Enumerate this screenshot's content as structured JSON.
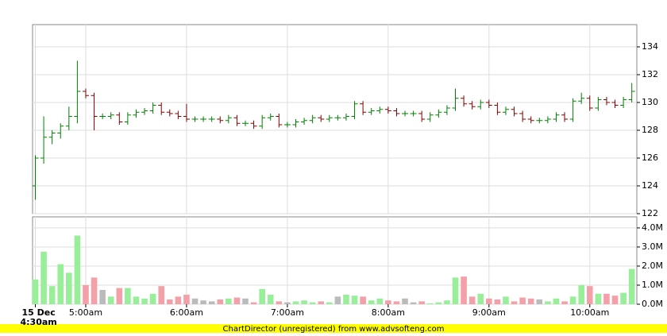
{
  "chart_data": [
    {
      "type": "ohlc",
      "ylim": [
        122,
        135.6
      ],
      "yticks": [
        122,
        124,
        126,
        128,
        130,
        132,
        134
      ],
      "grid": true,
      "up_color": "#008000",
      "down_color": "#800000",
      "open": [
        124.0,
        126.0,
        127.5,
        127.8,
        128.3,
        129.0,
        130.8,
        130.5,
        129.0,
        129.0,
        129.1,
        128.6,
        129.1,
        129.3,
        129.4,
        129.8,
        129.3,
        129.2,
        129.0,
        128.8,
        128.8,
        128.8,
        128.8,
        128.7,
        128.9,
        128.5,
        128.5,
        128.3,
        128.9,
        129.0,
        128.4,
        128.4,
        128.6,
        128.7,
        128.9,
        128.8,
        128.9,
        128.9,
        129.0,
        129.9,
        129.3,
        129.4,
        129.5,
        129.4,
        129.2,
        129.2,
        129.2,
        128.8,
        129.1,
        129.3,
        129.6,
        130.3,
        129.9,
        129.7,
        130.0,
        129.8,
        129.3,
        129.5,
        129.2,
        128.8,
        128.7,
        128.7,
        128.8,
        129.1,
        128.8,
        130.1,
        130.3,
        129.6,
        130.2,
        130.0,
        129.8,
        130.2
      ],
      "high": [
        126.2,
        129.0,
        128.0,
        128.5,
        129.7,
        133.0,
        131.0,
        130.7,
        129.2,
        129.3,
        129.3,
        129.3,
        129.5,
        129.6,
        130.0,
        130.0,
        129.5,
        129.4,
        129.9,
        129.0,
        129.0,
        129.0,
        129.0,
        129.1,
        129.1,
        128.7,
        128.7,
        129.1,
        129.2,
        129.2,
        128.6,
        128.8,
        128.9,
        129.1,
        129.1,
        129.1,
        129.1,
        129.2,
        130.1,
        130.1,
        129.6,
        129.7,
        129.7,
        129.6,
        129.4,
        129.4,
        129.4,
        129.3,
        129.5,
        129.8,
        131.0,
        130.5,
        130.1,
        130.2,
        130.2,
        130.0,
        129.7,
        129.7,
        129.4,
        129.0,
        128.9,
        129.0,
        129.3,
        129.3,
        130.3,
        130.7,
        130.5,
        130.4,
        130.4,
        130.2,
        130.4,
        131.4
      ],
      "low": [
        123.0,
        125.6,
        127.0,
        127.4,
        128.0,
        128.5,
        130.3,
        128.0,
        128.8,
        128.8,
        128.4,
        128.4,
        128.9,
        129.1,
        129.2,
        129.1,
        129.0,
        128.8,
        128.6,
        128.6,
        128.6,
        128.6,
        128.5,
        128.5,
        128.3,
        128.3,
        128.1,
        128.1,
        128.7,
        128.2,
        128.2,
        128.2,
        128.4,
        128.5,
        128.6,
        128.6,
        128.7,
        128.7,
        128.8,
        129.1,
        129.1,
        129.2,
        129.2,
        129.0,
        129.0,
        129.0,
        128.6,
        128.6,
        128.9,
        129.1,
        129.4,
        129.7,
        129.5,
        129.5,
        129.6,
        129.1,
        129.1,
        129.0,
        128.6,
        128.5,
        128.5,
        128.5,
        128.6,
        128.6,
        128.6,
        129.9,
        129.4,
        129.4,
        129.8,
        129.6,
        129.6,
        130.0
      ],
      "close": [
        126.0,
        127.5,
        127.8,
        128.3,
        129.0,
        130.8,
        130.5,
        129.0,
        129.0,
        129.1,
        128.6,
        129.1,
        129.3,
        129.4,
        129.8,
        129.3,
        129.2,
        129.0,
        128.8,
        128.8,
        128.8,
        128.8,
        128.7,
        128.9,
        128.5,
        128.5,
        128.3,
        128.9,
        129.0,
        128.4,
        128.4,
        128.6,
        128.7,
        128.9,
        128.8,
        128.9,
        128.9,
        129.0,
        129.9,
        129.3,
        129.4,
        129.5,
        129.4,
        129.2,
        129.2,
        129.2,
        128.8,
        129.1,
        129.3,
        129.6,
        130.3,
        129.9,
        129.7,
        130.0,
        129.8,
        129.3,
        129.5,
        129.2,
        128.8,
        128.7,
        128.7,
        128.8,
        129.1,
        128.8,
        130.1,
        130.3,
        129.6,
        130.2,
        130.0,
        129.8,
        130.2,
        130.8
      ]
    },
    {
      "type": "bar",
      "ylim": [
        0,
        4580000
      ],
      "yticks": [
        {
          "value": 0,
          "label": "0.0M"
        },
        {
          "value": 1000000,
          "label": "1.0M"
        },
        {
          "value": 2000000,
          "label": "2.0M"
        },
        {
          "value": 3000000,
          "label": "3.0M"
        },
        {
          "value": 4000000,
          "label": "4.0M"
        }
      ],
      "grid": true,
      "up_color": "#99ee99",
      "down_color": "#f4a0a8",
      "flat_color": "#bbbbbb",
      "date_label": "15 Dec",
      "categories": [
        "4:30am",
        null,
        null,
        null,
        null,
        null,
        "5:00am",
        null,
        null,
        null,
        null,
        null,
        null,
        null,
        null,
        null,
        null,
        null,
        "6:00am",
        null,
        null,
        null,
        null,
        null,
        null,
        null,
        null,
        null,
        null,
        null,
        "7:00am",
        null,
        null,
        null,
        null,
        null,
        null,
        null,
        null,
        null,
        null,
        null,
        "8:00am",
        null,
        null,
        null,
        null,
        null,
        null,
        null,
        null,
        null,
        null,
        null,
        "9:00am",
        null,
        null,
        null,
        null,
        null,
        null,
        null,
        null,
        null,
        null,
        null,
        "10:00am",
        null,
        null,
        null,
        null,
        null
      ],
      "values": [
        1300000,
        2750000,
        950000,
        2100000,
        1650000,
        3600000,
        1000000,
        1400000,
        750000,
        400000,
        850000,
        850000,
        400000,
        300000,
        550000,
        950000,
        250000,
        400000,
        500000,
        300000,
        200000,
        150000,
        250000,
        300000,
        350000,
        300000,
        100000,
        800000,
        500000,
        150000,
        100000,
        150000,
        200000,
        100000,
        150000,
        100000,
        400000,
        500000,
        450000,
        400000,
        200000,
        300000,
        200000,
        150000,
        300000,
        100000,
        150000,
        50000,
        100000,
        200000,
        1400000,
        1450000,
        400000,
        550000,
        300000,
        250000,
        400000,
        150000,
        350000,
        300000,
        250000,
        150000,
        300000,
        150000,
        400000,
        1000000,
        950000,
        550000,
        550000,
        450000,
        600000,
        1850000
      ]
    }
  ],
  "footer": "ChartDirector (unregistered) from www.advsofteng.com"
}
